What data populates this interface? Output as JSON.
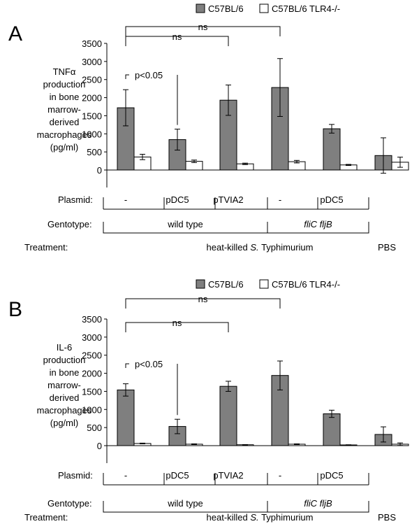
{
  "chart_data": [
    {
      "panel_label": "A",
      "type": "bar",
      "ylabel_lines": [
        "TNFα",
        "production",
        "in bone",
        "marrow-",
        "derived",
        "macrophages",
        "(pg/ml)"
      ],
      "ylim": [
        0,
        3500
      ],
      "yticks": [
        0,
        500,
        1000,
        1500,
        2000,
        2500,
        3000,
        3500
      ],
      "legend": {
        "placement": "top-right",
        "entries": [
          "C57BL/6",
          "C57BL/6 TLR4-/-"
        ],
        "colors": [
          "#7f7f7f",
          "#ffffff"
        ]
      },
      "categories": [
        "-",
        "pDC5",
        "pTVIA2",
        "-",
        "pDC5",
        "PBS"
      ],
      "series": [
        {
          "name": "C57BL/6",
          "values": [
            1720,
            840,
            1930,
            2280,
            1140,
            400
          ],
          "errors": [
            500,
            290,
            420,
            800,
            120,
            490
          ]
        },
        {
          "name": "C57BL/6 TLR4-/-",
          "values": [
            360,
            240,
            170,
            230,
            140,
            215
          ],
          "errors": [
            75,
            35,
            20,
            35,
            15,
            140
          ]
        }
      ],
      "annotations": [
        {
          "text": "ns",
          "from": 0,
          "to": 3
        },
        {
          "text": "ns",
          "from": 0,
          "to": 2
        },
        {
          "text": "p<0.05",
          "from": 0,
          "to": 1
        }
      ],
      "rows": {
        "plasmid_label": "Plasmid:",
        "plasmid": [
          "-",
          "pDC5",
          "pTVIA2",
          "-",
          "pDC5"
        ],
        "genotype_label": "Gentotype:",
        "genotype_groups": [
          {
            "text": "wild type",
            "italic": false
          },
          {
            "text": "fliC fljB",
            "italic": true
          }
        ],
        "treatment_label": "Treatment:",
        "treatment_prefix": "heat-killed ",
        "treatment_italic": "S.",
        "treatment_suffix": " Typhimurium",
        "treatment_other": "PBS"
      }
    },
    {
      "panel_label": "B",
      "type": "bar",
      "ylabel_lines": [
        "IL-6",
        "production",
        "in bone",
        "marrow-",
        "derived",
        "macrophages",
        "(pg/ml)"
      ],
      "ylim": [
        0,
        3500
      ],
      "yticks": [
        0,
        500,
        1000,
        1500,
        2000,
        2500,
        3000,
        3500
      ],
      "legend": {
        "placement": "top-right",
        "entries": [
          "C57BL/6",
          "C57BL/6 TLR4-/-"
        ],
        "colors": [
          "#7f7f7f",
          "#ffffff"
        ]
      },
      "categories": [
        "-",
        "pDC5",
        "pTVIA2",
        "-",
        "pDC5",
        "PBS"
      ],
      "series": [
        {
          "name": "C57BL/6",
          "values": [
            1540,
            530,
            1640,
            1940,
            880,
            310
          ],
          "errors": [
            170,
            200,
            140,
            400,
            100,
            210
          ]
        },
        {
          "name": "C57BL/6 TLR4-/-",
          "values": [
            60,
            40,
            25,
            40,
            20,
            40
          ],
          "errors": [
            10,
            10,
            5,
            10,
            5,
            35
          ]
        }
      ],
      "annotations": [
        {
          "text": "ns",
          "from": 0,
          "to": 3
        },
        {
          "text": "ns",
          "from": 0,
          "to": 2
        },
        {
          "text": "p<0.05",
          "from": 0,
          "to": 1
        }
      ],
      "rows": {
        "plasmid_label": "Plasmid:",
        "plasmid": [
          "-",
          "pDC5",
          "pTVIA2",
          "-",
          "pDC5"
        ],
        "genotype_label": "Gentotype:",
        "genotype_groups": [
          {
            "text": "wild type",
            "italic": false
          },
          {
            "text": "fliC fljB",
            "italic": true
          }
        ],
        "treatment_label": "Treatment:",
        "treatment_prefix": "heat-killed ",
        "treatment_italic": "S.",
        "treatment_suffix": " Typhimurium",
        "treatment_other": "PBS"
      }
    }
  ]
}
